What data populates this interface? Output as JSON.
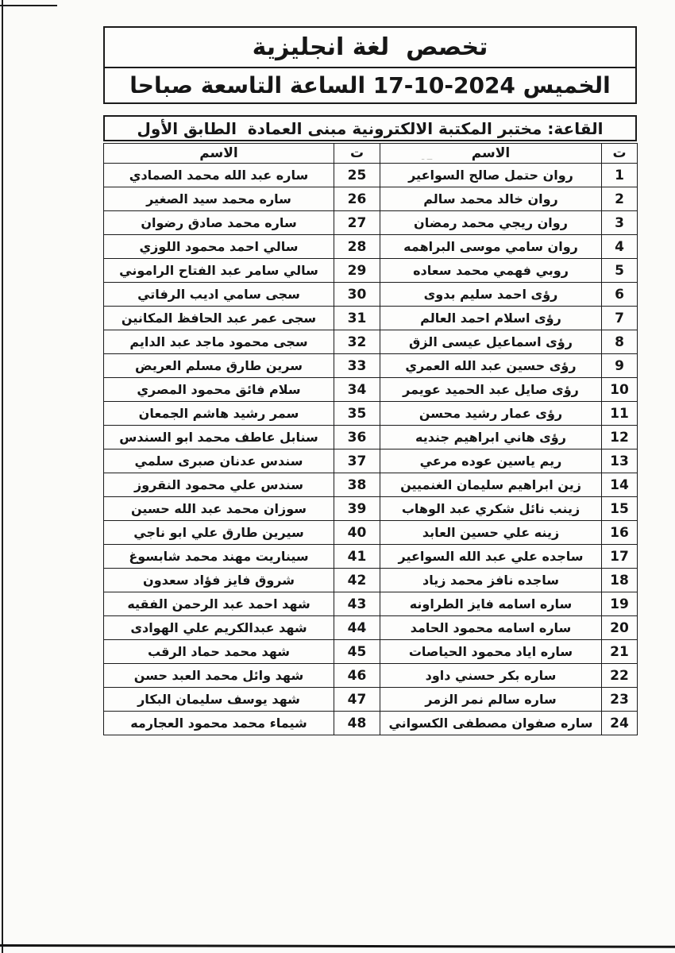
{
  "document": {
    "specialization_title": "تخصص  لغة انجليزية",
    "session_datetime": "الخميس 2024-10-17 الساعة التاسعة صباحا",
    "room_line": "القاعة: مختبر المكتبة الالكترونية مبنى العمادة  الطابق الأول"
  },
  "table": {
    "number_header": "ت",
    "name_header": "الاسم",
    "rows": [
      {
        "right_no": "1",
        "right_name": "روان حتمل صالح السواعير",
        "left_no": "25",
        "left_name": "ساره عبد الله محمد الصمادي"
      },
      {
        "right_no": "2",
        "right_name": "روان خالد محمد سالم",
        "left_no": "26",
        "left_name": "ساره محمد سيد الصغير"
      },
      {
        "right_no": "3",
        "right_name": "روان ريجي محمد رمضان",
        "left_no": "27",
        "left_name": "ساره محمد صادق رضوان"
      },
      {
        "right_no": "4",
        "right_name": "روان سامي موسى البراهمه",
        "left_no": "28",
        "left_name": "سالي احمد محمود اللوزي"
      },
      {
        "right_no": "5",
        "right_name": "روبي فهمي محمد سعاده",
        "left_no": "29",
        "left_name": "سالي سامر عبد الفتاح الراموني"
      },
      {
        "right_no": "6",
        "right_name": "رؤى احمد سليم بدوى",
        "left_no": "30",
        "left_name": "سجى سامي اديب الرفاتي"
      },
      {
        "right_no": "7",
        "right_name": "رؤى اسلام احمد العالم",
        "left_no": "31",
        "left_name": "سجى عمر عبد الحافظ المكانين"
      },
      {
        "right_no": "8",
        "right_name": "رؤى اسماعيل عيسى الزق",
        "left_no": "32",
        "left_name": "سجى محمود ماجد عبد الدايم"
      },
      {
        "right_no": "9",
        "right_name": "رؤى حسين عبد الله العمري",
        "left_no": "33",
        "left_name": "سرين طارق مسلم العريض"
      },
      {
        "right_no": "10",
        "right_name": "رؤى صايل عبد الحميد عويمر",
        "left_no": "34",
        "left_name": "سلام فائق محمود المصري"
      },
      {
        "right_no": "11",
        "right_name": "رؤى عمار رشيد محسن",
        "left_no": "35",
        "left_name": "سمر رشيد هاشم الجمعان"
      },
      {
        "right_no": "12",
        "right_name": "رؤى هاني ابراهيم جنديه",
        "left_no": "36",
        "left_name": "سنابل عاطف محمد ابو السندس"
      },
      {
        "right_no": "13",
        "right_name": "ريم ياسين عوده مرعي",
        "left_no": "37",
        "left_name": "سندس عدنان صبرى سلمي"
      },
      {
        "right_no": "14",
        "right_name": "زين ابراهيم سليمان الغنميين",
        "left_no": "38",
        "left_name": "سندس علي محمود النقروز"
      },
      {
        "right_no": "15",
        "right_name": "زينب نائل شكري عبد الوهاب",
        "left_no": "39",
        "left_name": "سوزان محمد عبد الله حسين"
      },
      {
        "right_no": "16",
        "right_name": "زينه علي حسين العابد",
        "left_no": "40",
        "left_name": "سيرين طارق علي ابو ناجي"
      },
      {
        "right_no": "17",
        "right_name": "ساجده علي عبد الله السواعير",
        "left_no": "41",
        "left_name": "سيناريت مهند محمد شابسوغ"
      },
      {
        "right_no": "18",
        "right_name": "ساجده نافز محمد زياد",
        "left_no": "42",
        "left_name": "شروق فايز فؤاد سعدون"
      },
      {
        "right_no": "19",
        "right_name": "ساره اسامه فايز الطراونه",
        "left_no": "43",
        "left_name": "شهد احمد عبد الرحمن الفقيه"
      },
      {
        "right_no": "20",
        "right_name": "ساره اسامه محمود الحامد",
        "left_no": "44",
        "left_name": "شهد عبدالكريم علي الهوادى"
      },
      {
        "right_no": "21",
        "right_name": "ساره اياد محمود الحياصات",
        "left_no": "45",
        "left_name": "شهد محمد حماد الرقب"
      },
      {
        "right_no": "22",
        "right_name": "ساره بكر حسني داود",
        "left_no": "46",
        "left_name": "شهد وائل محمد العبد حسن"
      },
      {
        "right_no": "23",
        "right_name": "ساره سالم نمر الزمر",
        "left_no": "47",
        "left_name": "شهد يوسف سليمان البكار"
      },
      {
        "right_no": "24",
        "right_name": "ساره صفوان مصطفى الكسواني",
        "left_no": "48",
        "left_name": "شيماء محمد محمود العجارمه"
      }
    ]
  }
}
